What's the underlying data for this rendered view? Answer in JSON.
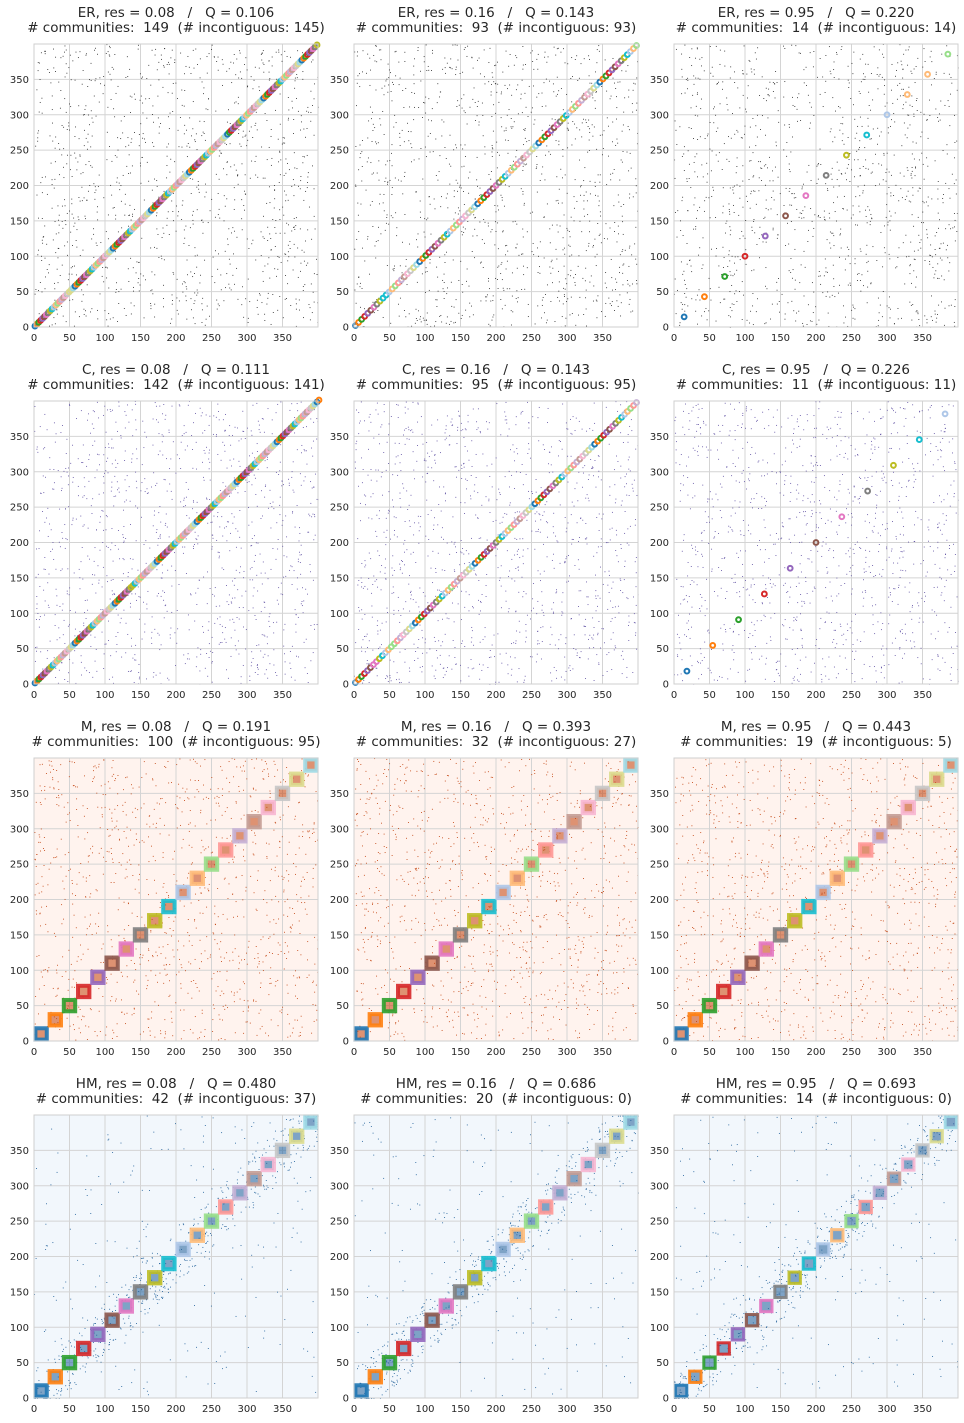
{
  "chart_data": [
    {
      "type": "heatmap",
      "model": "ER",
      "res": "0.08",
      "Q": "0.106",
      "communities": 149,
      "incontiguous": 145,
      "title": "ER, res = 0.08   /   Q = 0.106",
      "subtitle": "# communities:  149  (# incontiguous: 145)",
      "xlim": [
        0,
        400
      ],
      "ylim": [
        0,
        400
      ],
      "xticks": [
        "0",
        "50",
        "100",
        "150",
        "200",
        "250",
        "300",
        "350"
      ],
      "yticks": [
        "0",
        "50",
        "100",
        "150",
        "200",
        "250",
        "300",
        "350"
      ],
      "grid": true,
      "colormap": "greys",
      "background": "#ffffff",
      "dot_color": "#2b2b2b",
      "community_boundaries": []
    },
    {
      "type": "heatmap",
      "model": "ER",
      "res": "0.16",
      "Q": "0.143",
      "communities": 93,
      "incontiguous": 93,
      "title": "ER, res = 0.16   /   Q = 0.143",
      "subtitle": "# communities:  93  (# incontiguous: 93)",
      "xlim": [
        0,
        400
      ],
      "ylim": [
        0,
        400
      ],
      "xticks": [
        "0",
        "50",
        "100",
        "150",
        "200",
        "250",
        "300",
        "350"
      ],
      "yticks": [
        "0",
        "50",
        "100",
        "150",
        "200",
        "250",
        "300",
        "350"
      ],
      "grid": true,
      "colormap": "greys",
      "background": "#ffffff",
      "dot_color": "#2b2b2b",
      "community_boundaries": []
    },
    {
      "type": "heatmap",
      "model": "ER",
      "res": "0.95",
      "Q": "0.220",
      "communities": 14,
      "incontiguous": 14,
      "title": "ER, res = 0.95   /   Q = 0.220",
      "subtitle": "# communities:  14  (# incontiguous: 14)",
      "xlim": [
        0,
        400
      ],
      "ylim": [
        0,
        400
      ],
      "xticks": [
        "0",
        "50",
        "100",
        "150",
        "200",
        "250",
        "300",
        "350"
      ],
      "yticks": [
        "0",
        "50",
        "100",
        "150",
        "200",
        "250",
        "300",
        "350"
      ],
      "grid": true,
      "colormap": "greys",
      "background": "#ffffff",
      "dot_color": "#2b2b2b",
      "community_boundaries": []
    },
    {
      "type": "heatmap",
      "model": "C",
      "res": "0.08",
      "Q": "0.111",
      "communities": 142,
      "incontiguous": 141,
      "title": "C, res = 0.08   /   Q = 0.111",
      "subtitle": "# communities:  142  (# incontiguous: 141)",
      "xlim": [
        0,
        400
      ],
      "ylim": [
        0,
        400
      ],
      "xticks": [
        "0",
        "50",
        "100",
        "150",
        "200",
        "250",
        "300",
        "350"
      ],
      "yticks": [
        "0",
        "50",
        "100",
        "150",
        "200",
        "250",
        "300",
        "350"
      ],
      "grid": true,
      "colormap": "purples",
      "background": "#ffffff",
      "dot_color": "#5e4fa2",
      "community_boundaries": []
    },
    {
      "type": "heatmap",
      "model": "C",
      "res": "0.16",
      "Q": "0.143",
      "communities": 95,
      "incontiguous": 95,
      "title": "C, res = 0.16   /   Q = 0.143",
      "subtitle": "# communities:  95  (# incontiguous: 95)",
      "xlim": [
        0,
        400
      ],
      "ylim": [
        0,
        400
      ],
      "xticks": [
        "0",
        "50",
        "100",
        "150",
        "200",
        "250",
        "300",
        "350"
      ],
      "yticks": [
        "0",
        "50",
        "100",
        "150",
        "200",
        "250",
        "300",
        "350"
      ],
      "grid": true,
      "colormap": "purples",
      "background": "#ffffff",
      "dot_color": "#5e4fa2",
      "community_boundaries": []
    },
    {
      "type": "heatmap",
      "model": "C",
      "res": "0.95",
      "Q": "0.226",
      "communities": 11,
      "incontiguous": 11,
      "title": "C, res = 0.95   /   Q = 0.226",
      "subtitle": "# communities:  11  (# incontiguous: 11)",
      "xlim": [
        0,
        400
      ],
      "ylim": [
        0,
        400
      ],
      "xticks": [
        "0",
        "50",
        "100",
        "150",
        "200",
        "250",
        "300",
        "350"
      ],
      "yticks": [
        "0",
        "50",
        "100",
        "150",
        "200",
        "250",
        "300",
        "350"
      ],
      "grid": true,
      "colormap": "purples",
      "background": "#ffffff",
      "dot_color": "#5e4fa2",
      "community_boundaries": []
    },
    {
      "type": "heatmap",
      "model": "M",
      "res": "0.08",
      "Q": "0.191",
      "communities": 100,
      "incontiguous": 95,
      "title": "M, res = 0.08   /   Q = 0.191",
      "subtitle": "# communities:  100  (# incontiguous: 95)",
      "xlim": [
        0,
        400
      ],
      "ylim": [
        0,
        400
      ],
      "xticks": [
        "0",
        "50",
        "100",
        "150",
        "200",
        "250",
        "300",
        "350"
      ],
      "yticks": [
        "0",
        "50",
        "100",
        "150",
        "200",
        "250",
        "300",
        "350"
      ],
      "grid": true,
      "colormap": "reds",
      "background": "#fff3ee",
      "dot_color": "#c2410c",
      "community_boundaries": [
        0,
        20,
        40,
        60,
        80,
        100,
        120,
        140,
        160,
        180,
        200,
        220,
        240,
        260,
        280,
        300,
        320,
        340,
        360,
        380,
        400
      ]
    },
    {
      "type": "heatmap",
      "model": "M",
      "res": "0.16",
      "Q": "0.393",
      "communities": 32,
      "incontiguous": 27,
      "title": "M, res = 0.16   /   Q = 0.393",
      "subtitle": "# communities:  32  (# incontiguous: 27)",
      "xlim": [
        0,
        400
      ],
      "ylim": [
        0,
        400
      ],
      "xticks": [
        "0",
        "50",
        "100",
        "150",
        "200",
        "250",
        "300",
        "350"
      ],
      "yticks": [
        "0",
        "50",
        "100",
        "150",
        "200",
        "250",
        "300",
        "350"
      ],
      "grid": true,
      "colormap": "reds",
      "background": "#fff3ee",
      "dot_color": "#c2410c",
      "community_boundaries": [
        0,
        20,
        40,
        60,
        80,
        100,
        120,
        140,
        160,
        180,
        200,
        220,
        240,
        260,
        280,
        300,
        320,
        340,
        360,
        380,
        400
      ]
    },
    {
      "type": "heatmap",
      "model": "M",
      "res": "0.95",
      "Q": "0.443",
      "communities": 19,
      "incontiguous": 5,
      "title": "M, res = 0.95   /   Q = 0.443",
      "subtitle": "# communities:  19  (# incontiguous: 5)",
      "xlim": [
        0,
        400
      ],
      "ylim": [
        0,
        400
      ],
      "xticks": [
        "0",
        "50",
        "100",
        "150",
        "200",
        "250",
        "300",
        "350"
      ],
      "yticks": [
        "0",
        "50",
        "100",
        "150",
        "200",
        "250",
        "300",
        "350"
      ],
      "grid": true,
      "colormap": "reds",
      "background": "#fff3ee",
      "dot_color": "#c2410c",
      "community_boundaries": [
        0,
        20,
        40,
        60,
        80,
        100,
        120,
        140,
        160,
        180,
        200,
        220,
        240,
        260,
        280,
        300,
        320,
        340,
        360,
        380,
        400
      ]
    },
    {
      "type": "heatmap",
      "model": "HM",
      "res": "0.08",
      "Q": "0.480",
      "communities": 42,
      "incontiguous": 37,
      "title": "HM, res = 0.08   /   Q = 0.480",
      "subtitle": "# communities:  42  (# incontiguous: 37)",
      "xlim": [
        0,
        400
      ],
      "ylim": [
        0,
        400
      ],
      "xticks": [
        "0",
        "50",
        "100",
        "150",
        "200",
        "250",
        "300",
        "350"
      ],
      "yticks": [
        "0",
        "50",
        "100",
        "150",
        "200",
        "250",
        "300",
        "350"
      ],
      "grid": true,
      "colormap": "blues",
      "background": "#f2f7fc",
      "dot_color": "#1f5f99",
      "community_boundaries": [
        0,
        20,
        40,
        60,
        80,
        100,
        120,
        140,
        160,
        180,
        200,
        220,
        240,
        260,
        280,
        300,
        320,
        340,
        360,
        380,
        400
      ]
    },
    {
      "type": "heatmap",
      "model": "HM",
      "res": "0.16",
      "Q": "0.686",
      "communities": 20,
      "incontiguous": 0,
      "title": "HM, res = 0.16   /   Q = 0.686",
      "subtitle": "# communities:  20  (# incontiguous: 0)",
      "xlim": [
        0,
        400
      ],
      "ylim": [
        0,
        400
      ],
      "xticks": [
        "0",
        "50",
        "100",
        "150",
        "200",
        "250",
        "300",
        "350"
      ],
      "yticks": [
        "0",
        "50",
        "100",
        "150",
        "200",
        "250",
        "300",
        "350"
      ],
      "grid": true,
      "colormap": "blues",
      "background": "#f2f7fc",
      "dot_color": "#1f5f99",
      "community_boundaries": [
        0,
        20,
        40,
        60,
        80,
        100,
        120,
        140,
        160,
        180,
        200,
        220,
        240,
        260,
        280,
        300,
        320,
        340,
        360,
        380,
        400
      ]
    },
    {
      "type": "heatmap",
      "model": "HM",
      "res": "0.95",
      "Q": "0.693",
      "communities": 14,
      "incontiguous": 0,
      "title": "HM, res = 0.95   /   Q = 0.693",
      "subtitle": "# communities:  14  (# incontiguous: 0)",
      "xlim": [
        0,
        400
      ],
      "ylim": [
        0,
        400
      ],
      "xticks": [
        "0",
        "50",
        "100",
        "150",
        "200",
        "250",
        "300",
        "350"
      ],
      "yticks": [
        "0",
        "50",
        "100",
        "150",
        "200",
        "250",
        "300",
        "350"
      ],
      "grid": true,
      "colormap": "blues",
      "background": "#f2f7fc",
      "dot_color": "#1f5f99",
      "community_boundaries": [
        0,
        20,
        40,
        60,
        80,
        100,
        120,
        140,
        160,
        180,
        200,
        220,
        240,
        260,
        280,
        300,
        320,
        340,
        360,
        380,
        400
      ]
    }
  ],
  "palette": [
    "#1f77b4",
    "#ff7f0e",
    "#2ca02c",
    "#d62728",
    "#9467bd",
    "#8c564b",
    "#e377c2",
    "#7f7f7f",
    "#bcbd22",
    "#17becf",
    "#aec7e8",
    "#ffbb78",
    "#98df8a",
    "#ff9896",
    "#c5b0d5",
    "#c49c94",
    "#f7b6d2",
    "#c7c7c7",
    "#dbdb8d",
    "#9edae5"
  ]
}
